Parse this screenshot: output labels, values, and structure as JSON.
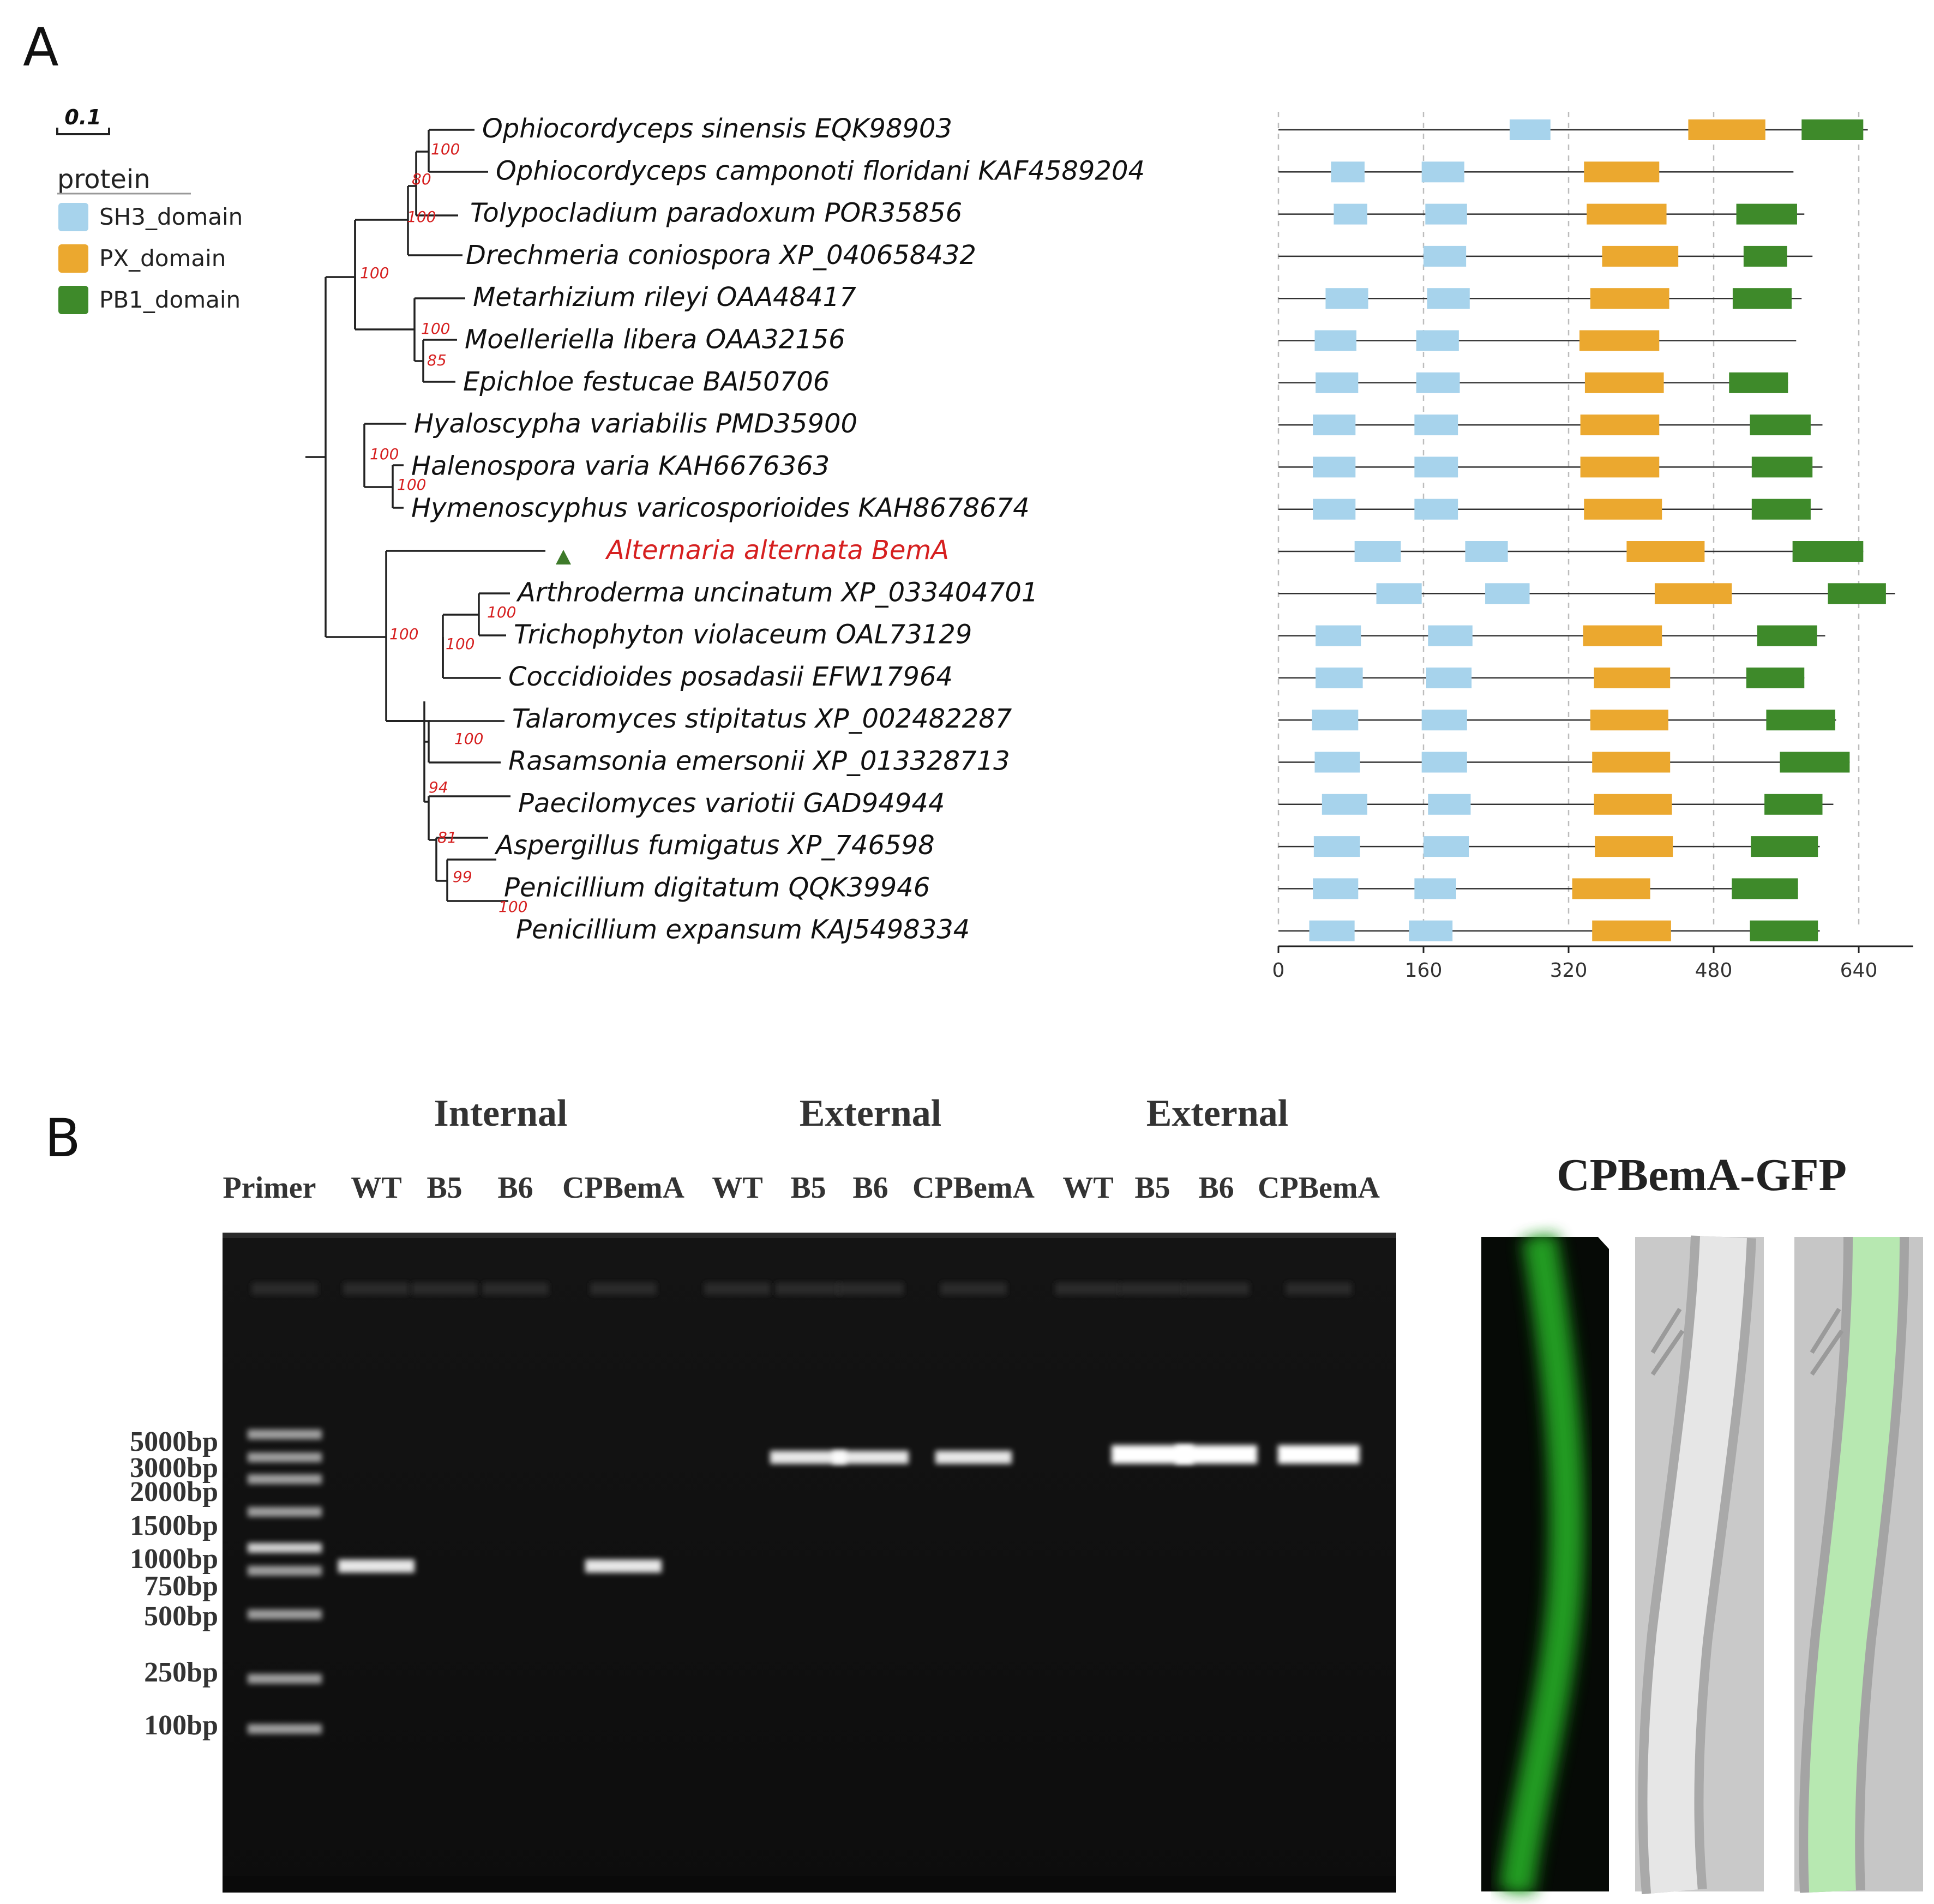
{
  "panel_a": {
    "label": "A",
    "scale_bar_label": "0.1",
    "legend": {
      "title": "protein",
      "items": [
        {
          "label": "SH3_domain",
          "color": "#a7d3ec"
        },
        {
          "label": "PX_domain",
          "color": "#eba82f"
        },
        {
          "label": "PB1_domain",
          "color": "#3e8a2a"
        }
      ]
    },
    "highlight_color": "#d62020",
    "bootstrap_color": "#d62020",
    "bootstrap_values": [
      "100",
      "80",
      "100",
      "100",
      "100",
      "85",
      "100",
      "100",
      "100",
      "100",
      "100",
      "100",
      "94",
      "81",
      "99",
      "100"
    ],
    "taxa": [
      {
        "name": "Ophiocordyceps sinensis EQK98903",
        "length": 650,
        "domains": [
          {
            "type": "SH3",
            "start": 255,
            "end": 300
          },
          {
            "type": "PX",
            "start": 452,
            "end": 537
          },
          {
            "type": "PB1",
            "start": 577,
            "end": 645
          }
        ]
      },
      {
        "name": "Ophiocordyceps camponoti floridani KAF4589204",
        "length": 568,
        "domains": [
          {
            "type": "SH3",
            "start": 58,
            "end": 95
          },
          {
            "type": "SH3",
            "start": 158,
            "end": 205
          },
          {
            "type": "PX",
            "start": 337,
            "end": 420
          }
        ]
      },
      {
        "name": "Tolypocladium paradoxum POR35856",
        "length": 580,
        "domains": [
          {
            "type": "SH3",
            "start": 61,
            "end": 98
          },
          {
            "type": "SH3",
            "start": 162,
            "end": 208
          },
          {
            "type": "PX",
            "start": 340,
            "end": 428
          },
          {
            "type": "PB1",
            "start": 505,
            "end": 572
          }
        ]
      },
      {
        "name": "Drechmeria coniospora XP_040658432",
        "length": 589,
        "domains": [
          {
            "type": "SH3",
            "start": 160,
            "end": 207
          },
          {
            "type": "PX",
            "start": 357,
            "end": 441
          },
          {
            "type": "PB1",
            "start": 513,
            "end": 561
          }
        ]
      },
      {
        "name": "Metarhizium rileyi OAA48417",
        "length": 577,
        "domains": [
          {
            "type": "SH3",
            "start": 52,
            "end": 99
          },
          {
            "type": "SH3",
            "start": 164,
            "end": 211
          },
          {
            "type": "PX",
            "start": 344,
            "end": 431
          },
          {
            "type": "PB1",
            "start": 501,
            "end": 566
          }
        ]
      },
      {
        "name": "Moelleriella libera OAA32156",
        "length": 571,
        "domains": [
          {
            "type": "SH3",
            "start": 40,
            "end": 86
          },
          {
            "type": "SH3",
            "start": 152,
            "end": 199
          },
          {
            "type": "PX",
            "start": 332,
            "end": 420
          }
        ]
      },
      {
        "name": "Epichloe festucae BAI50706",
        "length": 562,
        "domains": [
          {
            "type": "SH3",
            "start": 41,
            "end": 88
          },
          {
            "type": "SH3",
            "start": 152,
            "end": 200
          },
          {
            "type": "PX",
            "start": 338,
            "end": 425
          },
          {
            "type": "PB1",
            "start": 497,
            "end": 562
          }
        ]
      },
      {
        "name": "Hyaloscypha variabilis PMD35900",
        "length": 600,
        "domains": [
          {
            "type": "SH3",
            "start": 38,
            "end": 85
          },
          {
            "type": "SH3",
            "start": 150,
            "end": 198
          },
          {
            "type": "PX",
            "start": 333,
            "end": 420
          },
          {
            "type": "PB1",
            "start": 520,
            "end": 587
          }
        ]
      },
      {
        "name": "Halenospora varia KAH6676363",
        "length": 600,
        "domains": [
          {
            "type": "SH3",
            "start": 38,
            "end": 85
          },
          {
            "type": "SH3",
            "start": 150,
            "end": 198
          },
          {
            "type": "PX",
            "start": 333,
            "end": 420
          },
          {
            "type": "PB1",
            "start": 522,
            "end": 589
          }
        ]
      },
      {
        "name": "Hymenoscyphus varicosporioides KAH8678674",
        "length": 600,
        "domains": [
          {
            "type": "SH3",
            "start": 38,
            "end": 85
          },
          {
            "type": "SH3",
            "start": 150,
            "end": 198
          },
          {
            "type": "PX",
            "start": 337,
            "end": 423
          },
          {
            "type": "PB1",
            "start": 522,
            "end": 587
          }
        ]
      },
      {
        "name": "Alternaria alternata BemA",
        "highlight": true,
        "length": 645,
        "domains": [
          {
            "type": "SH3",
            "start": 84,
            "end": 135
          },
          {
            "type": "SH3",
            "start": 206,
            "end": 253
          },
          {
            "type": "PX",
            "start": 384,
            "end": 470
          },
          {
            "type": "PB1",
            "start": 567,
            "end": 645
          }
        ]
      },
      {
        "name": "Arthroderma uncinatum XP_033404701",
        "length": 680,
        "domains": [
          {
            "type": "SH3",
            "start": 108,
            "end": 158
          },
          {
            "type": "SH3",
            "start": 228,
            "end": 277
          },
          {
            "type": "PX",
            "start": 415,
            "end": 500
          },
          {
            "type": "PB1",
            "start": 606,
            "end": 670
          }
        ]
      },
      {
        "name": "Trichophyton violaceum OAL73129",
        "length": 603,
        "domains": [
          {
            "type": "SH3",
            "start": 41,
            "end": 91
          },
          {
            "type": "SH3",
            "start": 165,
            "end": 214
          },
          {
            "type": "PX",
            "start": 336,
            "end": 423
          },
          {
            "type": "PB1",
            "start": 528,
            "end": 594
          }
        ]
      },
      {
        "name": "Coccidioides posadasii EFW17964",
        "length": 580,
        "domains": [
          {
            "type": "SH3",
            "start": 41,
            "end": 93
          },
          {
            "type": "SH3",
            "start": 163,
            "end": 213
          },
          {
            "type": "PX",
            "start": 348,
            "end": 432
          },
          {
            "type": "PB1",
            "start": 516,
            "end": 580
          }
        ]
      },
      {
        "name": "Talaromyces stipitatus XP_002482287",
        "length": 615,
        "domains": [
          {
            "type": "SH3",
            "start": 37,
            "end": 88
          },
          {
            "type": "SH3",
            "start": 158,
            "end": 208
          },
          {
            "type": "PX",
            "start": 344,
            "end": 430
          },
          {
            "type": "PB1",
            "start": 538,
            "end": 614
          }
        ]
      },
      {
        "name": "Rasamsonia emersonii XP_013328713",
        "length": 630,
        "domains": [
          {
            "type": "SH3",
            "start": 40,
            "end": 90
          },
          {
            "type": "SH3",
            "start": 158,
            "end": 208
          },
          {
            "type": "PX",
            "start": 346,
            "end": 432
          },
          {
            "type": "PB1",
            "start": 553,
            "end": 630
          }
        ]
      },
      {
        "name": "Paecilomyces variotii GAD94944",
        "length": 612,
        "domains": [
          {
            "type": "SH3",
            "start": 48,
            "end": 98
          },
          {
            "type": "SH3",
            "start": 165,
            "end": 212
          },
          {
            "type": "PX",
            "start": 348,
            "end": 434
          },
          {
            "type": "PB1",
            "start": 536,
            "end": 600
          }
        ]
      },
      {
        "name": "Aspergillus fumigatus XP_746598",
        "length": 597,
        "domains": [
          {
            "type": "SH3",
            "start": 39,
            "end": 90
          },
          {
            "type": "SH3",
            "start": 160,
            "end": 210
          },
          {
            "type": "PX",
            "start": 349,
            "end": 435
          },
          {
            "type": "PB1",
            "start": 521,
            "end": 595
          }
        ]
      },
      {
        "name": "Penicillium digitatum QQK39946",
        "length": 573,
        "domains": [
          {
            "type": "SH3",
            "start": 38,
            "end": 88
          },
          {
            "type": "SH3",
            "start": 150,
            "end": 196
          },
          {
            "type": "PX",
            "start": 324,
            "end": 410
          },
          {
            "type": "PB1",
            "start": 500,
            "end": 573
          }
        ]
      },
      {
        "name": "Penicillium expansum KAJ5498334",
        "length": 597,
        "domains": [
          {
            "type": "SH3",
            "start": 34,
            "end": 84
          },
          {
            "type": "SH3",
            "start": 144,
            "end": 192
          },
          {
            "type": "PX",
            "start": 346,
            "end": 433
          },
          {
            "type": "PB1",
            "start": 520,
            "end": 595
          }
        ]
      }
    ],
    "axis_ticks": [
      "0",
      "160",
      "320",
      "480",
      "640"
    ],
    "axis_tick_values": [
      0,
      160,
      320,
      480,
      640
    ]
  },
  "panel_b": {
    "label": "B",
    "group_labels": [
      "Internal",
      "External",
      "External"
    ],
    "lane_labels": [
      "Primer",
      "WT",
      "B5",
      "B6",
      "CPBemA",
      "WT",
      "B5",
      "B6",
      "CPBemA",
      "WT",
      "B5",
      "B6",
      "CPBemA"
    ],
    "ladder_labels": [
      "5000bp",
      "3000bp",
      "2000bp",
      "1500bp",
      "1000bp",
      "750bp",
      "500bp",
      "250bp",
      "100bp"
    ],
    "bands": [
      {
        "lane": "WT",
        "group": "Internal",
        "size_bp": 900
      },
      {
        "lane": "CPBemA",
        "group": "Internal",
        "size_bp": 900
      },
      {
        "lane": "B5",
        "group": "External 1",
        "size_bp": 3000
      },
      {
        "lane": "B6",
        "group": "External 1",
        "size_bp": 3000
      },
      {
        "lane": "CPBemA",
        "group": "External 1",
        "size_bp": 3000
      },
      {
        "lane": "B5",
        "group": "External 2",
        "size_bp": 3200
      },
      {
        "lane": "B6",
        "group": "External 2",
        "size_bp": 3200
      },
      {
        "lane": "CPBemA",
        "group": "External 2",
        "size_bp": 3200
      }
    ],
    "microscopy_title": "CPBemA-GFP"
  }
}
